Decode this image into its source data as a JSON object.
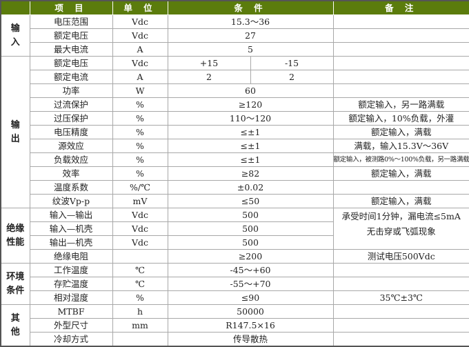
{
  "header": {
    "group": "",
    "item": "项 目",
    "unit": "单 位",
    "condition": "条 件",
    "remark": "备 注"
  },
  "colors": {
    "header_bg": "#5b7c0c",
    "header_text": "#ffffff",
    "border": "#a8a8a8"
  },
  "groups": [
    {
      "label": "输入",
      "rows": [
        {
          "item": "电压范围",
          "unit": "Vdc",
          "condition": "15.3～36",
          "remark": ""
        },
        {
          "item": "额定电压",
          "unit": "Vdc",
          "condition": "27",
          "remark": ""
        },
        {
          "item": "最大电流",
          "unit": "A",
          "condition": "5",
          "remark": ""
        }
      ]
    },
    {
      "label": "输出",
      "rows": [
        {
          "item": "额定电压",
          "unit": "Vdc",
          "condition": "+15",
          "condition2": "-15",
          "remark": ""
        },
        {
          "item": "额定电流",
          "unit": "A",
          "condition": "2",
          "condition2": "2",
          "remark": ""
        },
        {
          "item": "功率",
          "unit": "W",
          "condition": "60",
          "remark": ""
        },
        {
          "item": "过流保护",
          "unit": "%",
          "condition": "≥120",
          "remark": "额定输入，另一路满载"
        },
        {
          "item": "过压保护",
          "unit": "%",
          "condition": "110～120",
          "remark": "额定输入，10%负载，外灌"
        },
        {
          "item": "电压精度",
          "unit": "%",
          "condition": "≤±1",
          "remark": "额定输入，满载"
        },
        {
          "item": "源效应",
          "unit": "%",
          "condition": "≤±1",
          "remark": "满载，输入15.3V～36V"
        },
        {
          "item": "负载效应",
          "unit": "%",
          "condition": "≤±1",
          "remark": "额定输入，被测路0%～100%负载，另一路满载",
          "small": true
        },
        {
          "item": "效率",
          "unit": "%",
          "condition": "≥82",
          "remark": "额定输入，满载"
        },
        {
          "item": "温度系数",
          "unit": "%/℃",
          "condition": "±0.02",
          "remark": ""
        },
        {
          "item": "纹波Vp-p",
          "unit": "mV",
          "condition": "≤50",
          "remark": "额定输入，满载"
        }
      ]
    },
    {
      "label": "绝缘性能",
      "rows": [
        {
          "item": "输入—输出",
          "unit": "Vdc",
          "condition": "500",
          "remark": "承受时间1分钟，漏电流≤5mA",
          "remark_line2": "无击穿或飞弧现象",
          "remark_span": 3
        },
        {
          "item": "输入—机壳",
          "unit": "Vdc",
          "condition": "500"
        },
        {
          "item": "输出—机壳",
          "unit": "Vdc",
          "condition": "500"
        },
        {
          "item": "绝缘电阻",
          "unit": "",
          "condition": "≥200",
          "remark": "测试电压500Vdc"
        }
      ]
    },
    {
      "label": "环境条件",
      "rows": [
        {
          "item": "工作温度",
          "unit": "℃",
          "condition": "-45～+60",
          "remark": ""
        },
        {
          "item": "存贮温度",
          "unit": "℃",
          "condition": "-55～+70",
          "remark": ""
        },
        {
          "item": "相对湿度",
          "unit": "%",
          "condition": "≤90",
          "remark": "35℃±3℃"
        }
      ]
    },
    {
      "label": "其他",
      "rows": [
        {
          "item": "MTBF",
          "unit": "h",
          "condition": "50000",
          "remark": ""
        },
        {
          "item": "外型尺寸",
          "unit": "mm",
          "condition": "R147.5×16",
          "remark": ""
        },
        {
          "item": "冷却方式",
          "unit": "",
          "condition": "传导散热",
          "remark": ""
        }
      ]
    }
  ]
}
